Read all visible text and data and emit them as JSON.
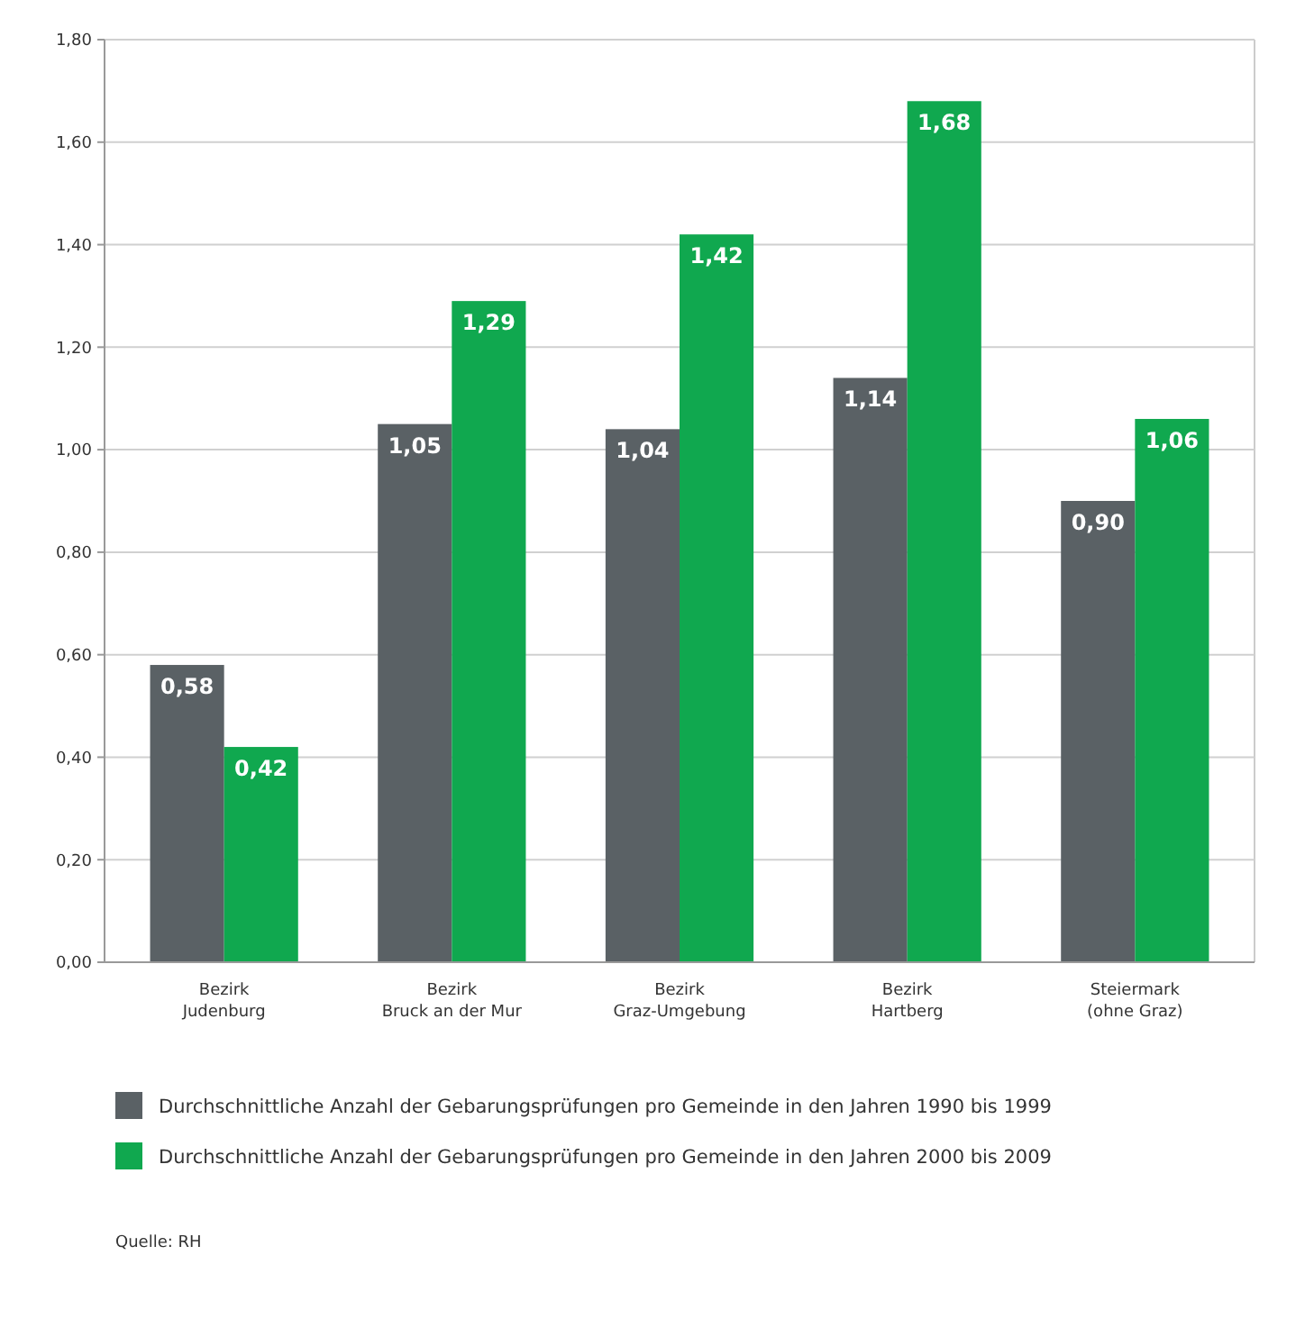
{
  "chart_data": {
    "type": "bar",
    "categories": [
      "Bezirk Judenburg",
      "Bezirk Bruck an der Mur",
      "Bezirk Graz-Umgebung",
      "Bezirk Hartberg",
      "Steiermark (ohne Graz)"
    ],
    "series": [
      {
        "name": "Durchschnittliche Anzahl der Gebarungsprüfungen pro Gemeinde in den Jahren 1990 bis 1999",
        "color": "#5a6165",
        "values": [
          0.58,
          1.05,
          1.04,
          1.14,
          0.9
        ],
        "value_labels": [
          "0,58",
          "1,05",
          "1,04",
          "1,14",
          "0,90"
        ]
      },
      {
        "name": "Durchschnittliche Anzahl der Gebarungsprüfungen pro Gemeinde in den Jahren 2000 bis 2009",
        "color": "#10a84f",
        "values": [
          0.42,
          1.29,
          1.42,
          1.68,
          1.06
        ],
        "value_labels": [
          "0,42",
          "1,29",
          "1,42",
          "1,68",
          "1,06"
        ]
      }
    ],
    "ylim": [
      0,
      1.8
    ],
    "yticks": [
      {
        "value": 0,
        "label": "0,00"
      },
      {
        "value": 0.2,
        "label": "0,20"
      },
      {
        "value": 0.4,
        "label": "0,40"
      },
      {
        "value": 0.6,
        "label": "0,60"
      },
      {
        "value": 0.8,
        "label": "0,80"
      },
      {
        "value": 1,
        "label": "1,00"
      },
      {
        "value": 1.2,
        "label": "1,20"
      },
      {
        "value": 1.4,
        "label": "1,40"
      },
      {
        "value": 1.6,
        "label": "1,60"
      },
      {
        "value": 1.8,
        "label": "1,80"
      }
    ],
    "grid": "y",
    "legend": "bottom",
    "annotations": [
      "Quelle: RH"
    ]
  }
}
